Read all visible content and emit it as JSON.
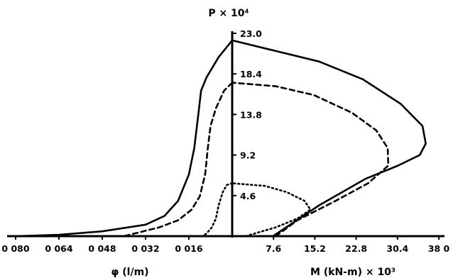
{
  "chart_data": {
    "type": "line",
    "title": "",
    "p_axis": {
      "label": "P × 10⁴",
      "range": [
        0,
        23.0
      ],
      "ticks": [
        4.6,
        9.2,
        13.8,
        18.4,
        23.0
      ],
      "tick_labels": [
        "4.6",
        "9.2",
        "13.8",
        "18.4",
        "23.0"
      ]
    },
    "phi_axis": {
      "label": "φ (l/m)",
      "range": [
        0.08,
        0
      ],
      "ticks": [
        0.08,
        0.064,
        0.048,
        0.032,
        0.016
      ],
      "tick_labels": [
        "0 080",
        "0 064",
        "0 048",
        "0 032",
        "0 016"
      ]
    },
    "m_axis": {
      "label": "M (kN-m) × 10³",
      "range": [
        0,
        38.0
      ],
      "ticks": [
        7.6,
        15.2,
        22.8,
        30.4,
        38.0
      ],
      "tick_labels": [
        "7.6",
        "15.2",
        "22.8",
        "30.4",
        "38 0"
      ]
    },
    "series": [
      {
        "style": "solid",
        "phi_side": [
          [
            0.0,
            22.2
          ],
          [
            0.005,
            20.3
          ],
          [
            0.0095,
            18.0
          ],
          [
            0.0115,
            16.5
          ],
          [
            0.0125,
            13.8
          ],
          [
            0.014,
            10.0
          ],
          [
            0.016,
            7.0
          ],
          [
            0.02,
            4.0
          ],
          [
            0.025,
            2.3
          ],
          [
            0.032,
            1.3
          ],
          [
            0.048,
            0.55
          ],
          [
            0.064,
            0.15
          ],
          [
            0.08,
            0.0
          ]
        ],
        "m_side": [
          [
            7.5,
            0.0
          ],
          [
            16.0,
            3.5
          ],
          [
            24.5,
            6.5
          ],
          [
            30.5,
            8.0
          ],
          [
            34.5,
            9.2
          ],
          [
            35.6,
            10.5
          ],
          [
            35.0,
            12.5
          ],
          [
            31.0,
            15.0
          ],
          [
            24.0,
            17.8
          ],
          [
            16.0,
            19.8
          ],
          [
            8.0,
            21.0
          ],
          [
            0.0,
            22.2
          ]
        ]
      },
      {
        "style": "dashed",
        "phi_side": [
          [
            0.0,
            17.4
          ],
          [
            0.003,
            16.5
          ],
          [
            0.006,
            14.5
          ],
          [
            0.008,
            12.5
          ],
          [
            0.009,
            10.0
          ],
          [
            0.01,
            7.0
          ],
          [
            0.012,
            4.5
          ],
          [
            0.015,
            3.0
          ],
          [
            0.02,
            1.8
          ],
          [
            0.027,
            1.0
          ],
          [
            0.04,
            0.0
          ]
        ],
        "m_side": [
          [
            8.0,
            0.0
          ],
          [
            12.0,
            1.8
          ],
          [
            19.0,
            4.0
          ],
          [
            25.0,
            6.0
          ],
          [
            28.7,
            8.0
          ],
          [
            28.6,
            10.0
          ],
          [
            26.5,
            12.0
          ],
          [
            22.0,
            14.0
          ],
          [
            15.0,
            16.0
          ],
          [
            8.0,
            17.0
          ],
          [
            0.0,
            17.4
          ]
        ]
      },
      {
        "style": "dotted",
        "phi_side": [
          [
            0.0,
            6.0
          ],
          [
            0.002,
            5.8
          ],
          [
            0.0035,
            5.0
          ],
          [
            0.005,
            3.5
          ],
          [
            0.006,
            2.0
          ],
          [
            0.0075,
            1.0
          ],
          [
            0.0095,
            0.3
          ],
          [
            0.011,
            0.0
          ]
        ],
        "m_side": [
          [
            2.5,
            0.0
          ],
          [
            8.0,
            1.0
          ],
          [
            12.0,
            2.0
          ],
          [
            14.4,
            3.0
          ],
          [
            13.3,
            4.0
          ],
          [
            10.0,
            5.0
          ],
          [
            6.0,
            5.7
          ],
          [
            0.0,
            6.0
          ]
        ]
      }
    ]
  }
}
